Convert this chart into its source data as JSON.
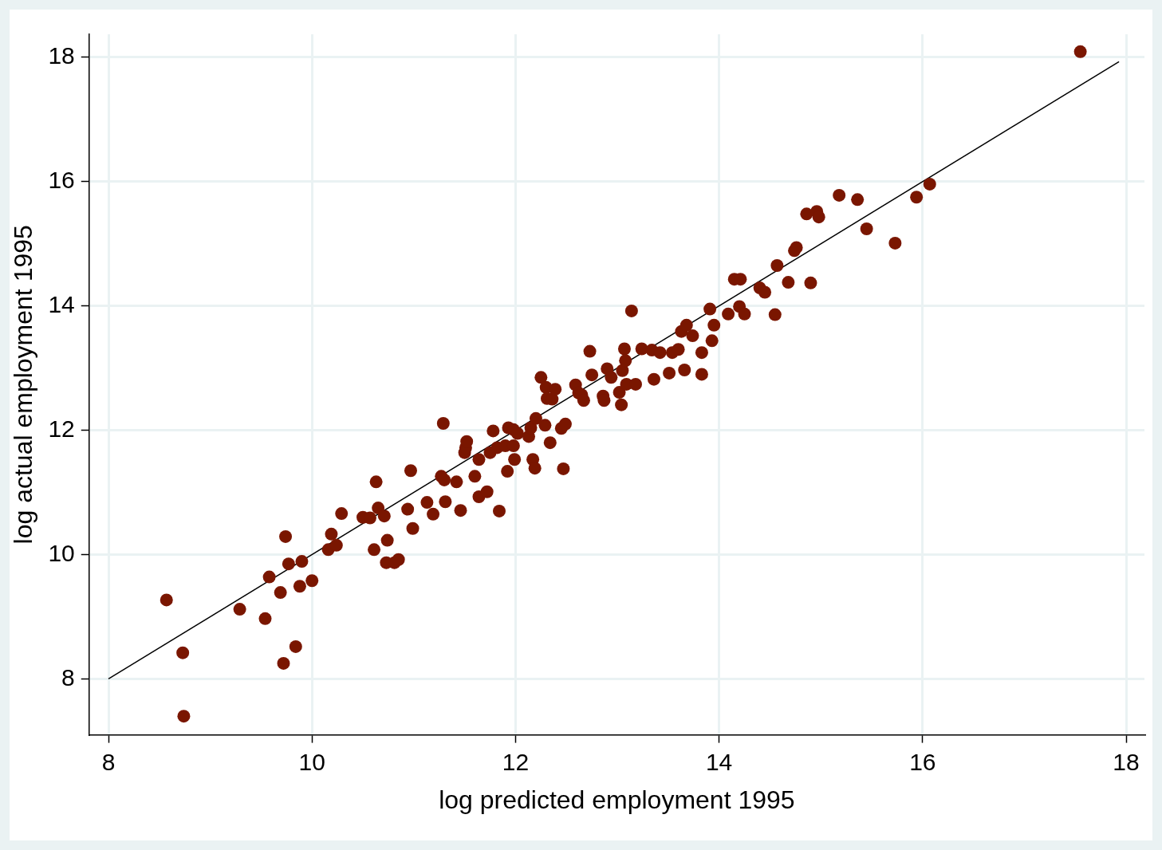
{
  "chart_data": {
    "type": "scatter",
    "xlabel": "log predicted employment 1995",
    "ylabel": "log actual employment 1995",
    "xlim": [
      7.81,
      18.18
    ],
    "ylim": [
      7.1,
      18.37
    ],
    "xticks": [
      8,
      10,
      12,
      14,
      16,
      18
    ],
    "yticks": [
      8,
      10,
      12,
      14,
      16,
      18
    ],
    "grid": true,
    "legend": false,
    "marker": "circle",
    "series": [
      {
        "color": "#7a1600",
        "x": [
          8.57,
          8.74,
          8.73,
          9.29,
          9.54,
          9.58,
          9.69,
          9.72,
          9.74,
          9.77,
          9.84,
          9.88,
          9.9,
          10.0,
          10.16,
          10.19,
          10.24,
          10.29,
          10.5,
          10.57,
          10.61,
          10.63,
          10.65,
          10.71,
          10.74,
          10.73,
          10.81,
          10.85,
          10.94,
          10.97,
          10.99,
          11.13,
          11.19,
          11.27,
          11.3,
          11.29,
          11.31,
          11.42,
          11.46,
          11.5,
          11.51,
          11.52,
          11.6,
          11.64,
          11.64,
          11.72,
          11.75,
          11.78,
          11.84,
          11.82,
          11.9,
          11.92,
          11.93,
          11.98,
          11.98,
          11.99,
          12.02,
          12.13,
          12.15,
          12.17,
          12.19,
          12.2,
          12.25,
          12.29,
          12.3,
          12.31,
          12.34,
          12.36,
          12.39,
          12.45,
          12.47,
          12.49,
          12.59,
          12.62,
          12.65,
          12.67,
          12.73,
          12.75,
          12.86,
          12.87,
          12.9,
          12.94,
          13.02,
          13.05,
          13.04,
          13.07,
          13.08,
          13.09,
          13.14,
          13.18,
          13.24,
          13.36,
          13.34,
          13.42,
          13.54,
          13.51,
          13.6,
          13.63,
          13.66,
          13.68,
          13.74,
          13.83,
          13.83,
          13.91,
          13.93,
          13.95,
          14.09,
          14.15,
          14.21,
          14.2,
          14.25,
          14.4,
          14.45,
          14.55,
          14.57,
          14.68,
          14.74,
          14.76,
          14.9,
          14.86,
          14.96,
          14.98,
          15.18,
          15.36,
          15.45,
          15.73,
          15.94,
          16.07,
          17.55
        ],
        "values": [
          9.27,
          7.4,
          8.42,
          9.12,
          8.97,
          9.64,
          9.39,
          8.25,
          10.29,
          9.85,
          8.52,
          9.49,
          9.89,
          9.58,
          10.08,
          10.33,
          10.15,
          10.66,
          10.6,
          10.59,
          10.08,
          11.17,
          10.75,
          10.62,
          10.23,
          9.87,
          9.87,
          9.92,
          10.73,
          11.35,
          10.42,
          10.84,
          10.65,
          11.26,
          11.2,
          12.11,
          10.85,
          11.17,
          10.71,
          11.64,
          11.72,
          11.82,
          11.26,
          11.53,
          10.93,
          11.01,
          11.64,
          11.99,
          10.7,
          11.72,
          11.75,
          11.34,
          12.04,
          12.01,
          11.75,
          11.53,
          11.95,
          11.9,
          12.04,
          11.53,
          11.39,
          12.19,
          12.85,
          12.08,
          12.69,
          12.51,
          11.8,
          12.5,
          12.66,
          12.03,
          11.38,
          12.1,
          12.73,
          12.6,
          12.57,
          12.48,
          13.27,
          12.89,
          12.55,
          12.48,
          12.99,
          12.85,
          12.61,
          12.96,
          12.41,
          13.31,
          13.12,
          12.74,
          13.92,
          12.74,
          13.31,
          12.82,
          13.29,
          13.25,
          13.25,
          12.92,
          13.3,
          13.59,
          12.97,
          13.69,
          13.52,
          13.25,
          12.9,
          13.95,
          13.44,
          13.69,
          13.87,
          14.43,
          14.43,
          13.99,
          13.87,
          14.29,
          14.22,
          13.86,
          14.65,
          14.38,
          14.89,
          14.94,
          14.37,
          15.48,
          15.52,
          15.43,
          15.78,
          15.71,
          15.24,
          15.01,
          15.75,
          15.96,
          18.09
        ]
      },
      {
        "type": "line",
        "color": "#000000",
        "marker": "none",
        "x": [
          8,
          17.93
        ],
        "values": [
          8,
          17.93
        ]
      }
    ]
  }
}
